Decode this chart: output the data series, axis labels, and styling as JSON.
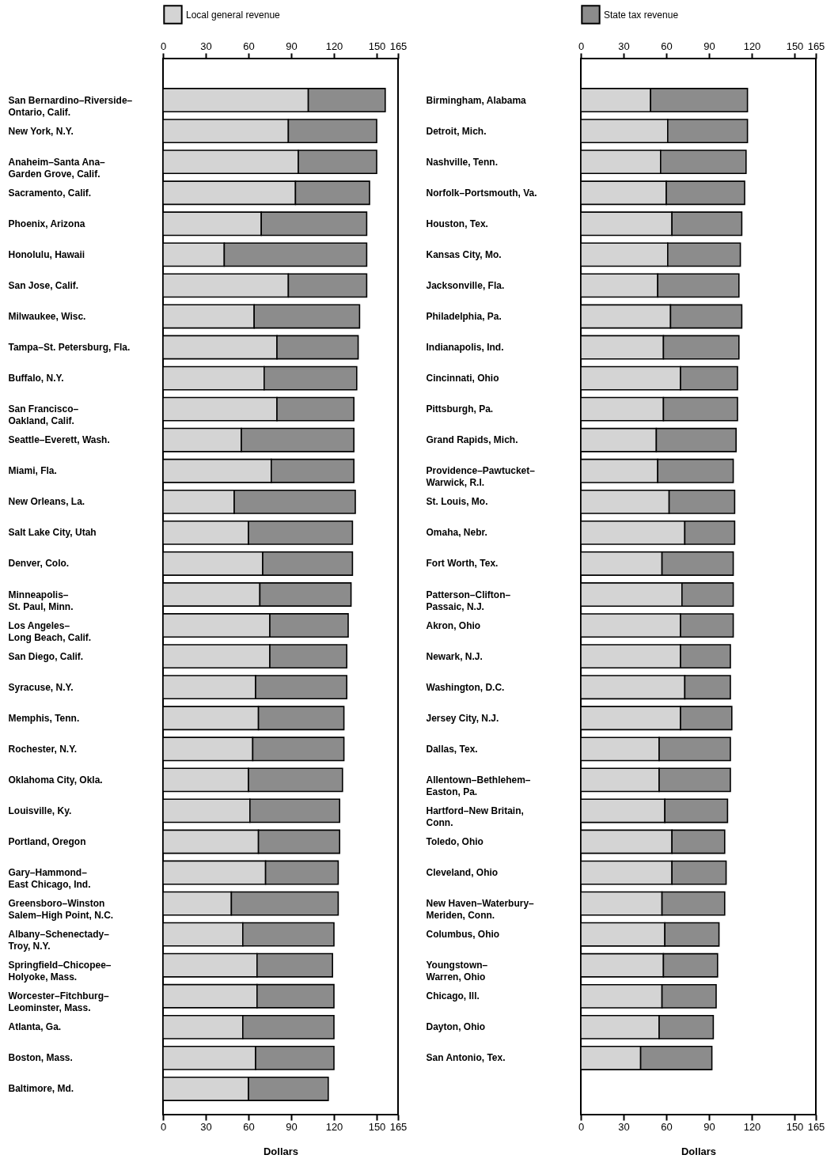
{
  "chart_data": [
    {
      "type": "bar",
      "orientation": "horizontal",
      "stacked": true,
      "legend": "top",
      "xlabel": "Dollars",
      "xlim": [
        0,
        165
      ],
      "xticks": [
        0,
        30,
        60,
        90,
        120,
        150,
        165
      ],
      "x2lim": [
        0,
        165
      ],
      "x2ticks": [
        0,
        30,
        60,
        90,
        120,
        150,
        165
      ],
      "categories": [
        "San Bernardino–Riverside–\nOntario, Calif.",
        "New York, N.Y.",
        "Anaheim–Santa Ana–\nGarden Grove, Calif.",
        "Sacramento, Calif.",
        "Phoenix, Arizona",
        "Honolulu, Hawaii",
        "San Jose, Calif.",
        "Milwaukee, Wisc.",
        "Tampa–St. Petersburg, Fla.",
        "Buffalo, N.Y.",
        "San Francisco–\nOakland, Calif.",
        "Seattle–Everett, Wash.",
        "Miami, Fla.",
        "New Orleans, La.",
        "Salt Lake City, Utah",
        "Denver, Colo.",
        "Minneapolis–\nSt. Paul, Minn.",
        "Los Angeles–\nLong Beach, Calif.",
        "San Diego, Calif.",
        "Syracuse, N.Y.",
        "Memphis, Tenn.",
        "Rochester, N.Y.",
        "Oklahoma City, Okla.",
        "Louisville, Ky.",
        "Portland, Oregon",
        "Gary–Hammond–\nEast Chicago, Ind.",
        "Greensboro–Winston\nSalem–High Point, N.C.",
        "Albany–Schenectady–\nTroy, N.Y.",
        "Springfield–Chicopee–\nHolyoke, Mass.",
        "Worcester–Fitchburg–\nLeominster, Mass.",
        "Atlanta, Ga.",
        "Boston, Mass.",
        "Baltimore, Md."
      ],
      "series": [
        {
          "name": "Local general revenue",
          "color": "#d4d4d4",
          "values": [
            102,
            88,
            95,
            93,
            69,
            43,
            88,
            64,
            80,
            71,
            80,
            55,
            76,
            50,
            60,
            70,
            68,
            75,
            75,
            65,
            67,
            63,
            60,
            61,
            67,
            72,
            48,
            56,
            66,
            66,
            56,
            65,
            60
          ]
        },
        {
          "color": "#8c8c8c",
          "values": [
            54,
            62,
            55,
            52,
            74,
            100,
            55,
            74,
            57,
            65,
            54,
            79,
            58,
            85,
            73,
            63,
            64,
            55,
            54,
            64,
            60,
            64,
            66,
            63,
            57,
            51,
            75,
            64,
            53,
            54,
            64,
            55,
            56
          ]
        }
      ]
    },
    {
      "type": "bar",
      "orientation": "horizontal",
      "stacked": true,
      "legend": "top",
      "xlabel": "Dollars",
      "xlim": [
        0,
        165
      ],
      "xticks": [
        0,
        30,
        60,
        90,
        120,
        150,
        165
      ],
      "x2lim": [
        0,
        165
      ],
      "x2ticks": [
        0,
        30,
        60,
        90,
        120,
        150,
        165
      ],
      "categories": [
        "Birmingham, Alabama",
        "Detroit, Mich.",
        "Nashville, Tenn.",
        "Norfolk–Portsmouth, Va.",
        "Houston, Tex.",
        "Kansas City, Mo.",
        "Jacksonville, Fla.",
        "Philadelphia, Pa.",
        "Indianapolis, Ind.",
        "Cincinnati, Ohio",
        "Pittsburgh, Pa.",
        "Grand Rapids, Mich.",
        "Providence–Pawtucket–\nWarwick, R.I.",
        "St. Louis, Mo.",
        "Omaha, Nebr.",
        "Fort Worth, Tex.",
        "Patterson–Clifton–\nPassaic, N.J.",
        "Akron, Ohio",
        "Newark, N.J.",
        "Washington, D.C.",
        "Jersey City, N.J.",
        "Dallas, Tex.",
        "Allentown–Bethlehem–\nEaston, Pa.",
        "Hartford–New Britain,\nConn.",
        "Toledo, Ohio",
        "Cleveland, Ohio",
        "New Haven–Waterbury–\nMeriden, Conn.",
        "Columbus, Ohio",
        "Youngstown–\nWarren, Ohio",
        "Chicago, Ill.",
        "Dayton, Ohio",
        "San Antonio, Tex."
      ],
      "series": [
        {
          "color": "#d4d4d4",
          "values": [
            49,
            61,
            56,
            60,
            64,
            61,
            54,
            63,
            58,
            70,
            58,
            53,
            54,
            62,
            73,
            57,
            71,
            70,
            70,
            73,
            70,
            55,
            55,
            59,
            64,
            64,
            57,
            59,
            58,
            57,
            55,
            42
          ]
        },
        {
          "name": "State tax revenue",
          "color": "#8c8c8c",
          "values": [
            68,
            56,
            60,
            55,
            49,
            51,
            57,
            50,
            53,
            40,
            52,
            56,
            53,
            46,
            35,
            50,
            36,
            37,
            35,
            32,
            36,
            50,
            50,
            44,
            37,
            38,
            44,
            38,
            38,
            38,
            38,
            50
          ]
        }
      ]
    }
  ]
}
